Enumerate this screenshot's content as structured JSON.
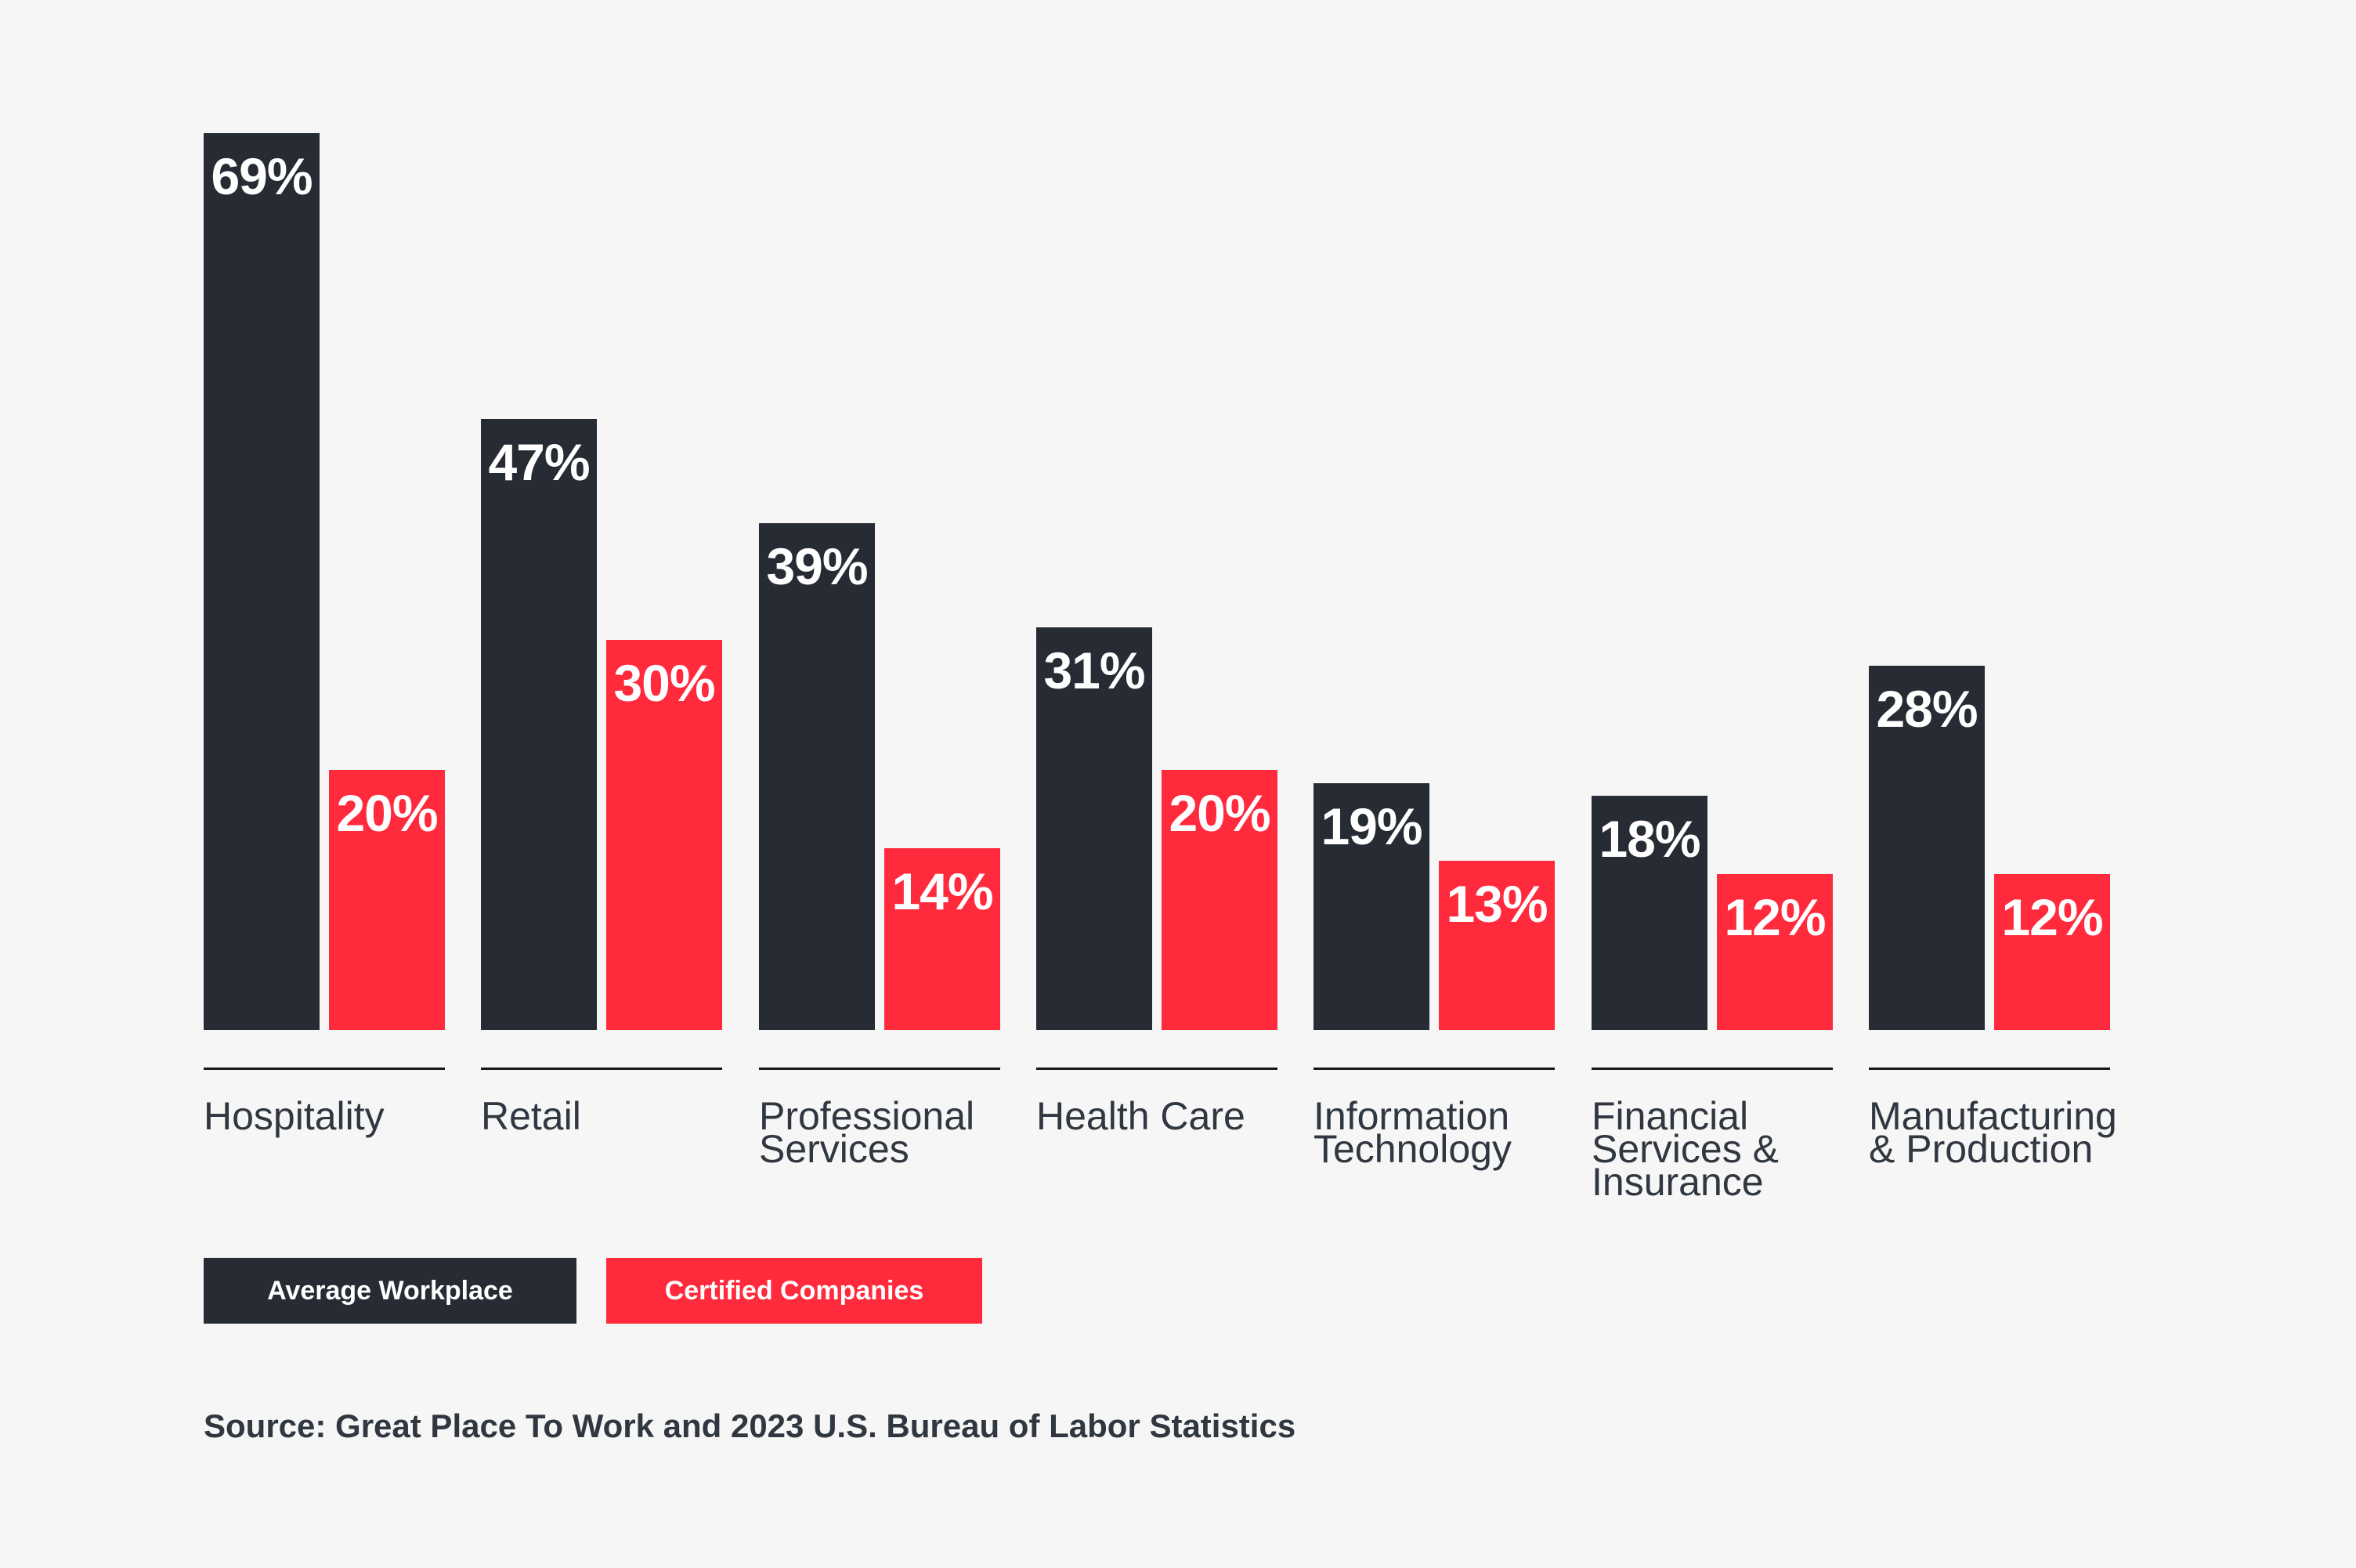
{
  "colors": {
    "background": "#F5F6F5",
    "bar_average_workplace": "#262B34",
    "bar_certified_companies": "#FF2B3D",
    "category_text": "#303740",
    "underline": "#14161B",
    "value_text": "#FFFFFF"
  },
  "chart_data": {
    "type": "bar",
    "categories": [
      "Hospitality",
      "Retail",
      "Professional Services",
      "Health Care",
      "Information Technology",
      "Financial Services & Insurance",
      "Manufacturing & Production"
    ],
    "category_lines": [
      [
        "Hospitality"
      ],
      [
        "Retail"
      ],
      [
        "Professional",
        "Services"
      ],
      [
        "Health Care"
      ],
      [
        "Information",
        "Technology"
      ],
      [
        "Financial",
        "Services &",
        "Insurance"
      ],
      [
        "Manufacturing",
        "& Production"
      ]
    ],
    "series": [
      {
        "name": "Average Workplace",
        "color": "#262B34",
        "values": [
          69,
          47,
          39,
          31,
          19,
          18,
          28
        ]
      },
      {
        "name": "Certified Companies",
        "color": "#FF2B3D",
        "values": [
          20,
          30,
          14,
          20,
          13,
          12,
          12
        ]
      }
    ],
    "value_suffix": "%",
    "value_labels_shown": true,
    "ylim": [
      0,
      69
    ],
    "grid": false,
    "axis_shown": false,
    "legend_position": "bottom-left",
    "source": "Source: Great Place To Work and 2023 U.S. Bureau of Labor Statistics"
  },
  "legend": {
    "items": [
      {
        "label": "Average Workplace",
        "color": "#262B34"
      },
      {
        "label": "Certified Companies",
        "color": "#FF2B3D"
      }
    ]
  }
}
